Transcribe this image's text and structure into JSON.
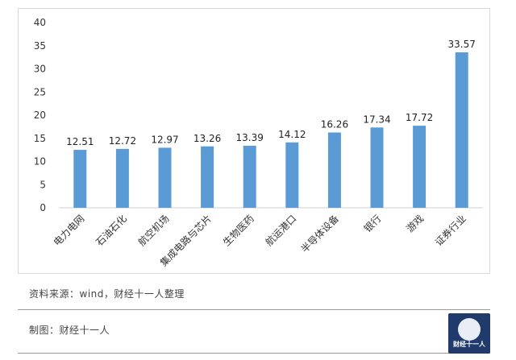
{
  "chart_data": {
    "type": "bar",
    "categories": [
      "电力电网",
      "石油石化",
      "航空机场",
      "集成电路与芯片",
      "生物医药",
      "航运港口",
      "半导体设备",
      "银行",
      "游戏",
      "证券行业"
    ],
    "values": [
      12.51,
      12.72,
      12.97,
      13.26,
      13.39,
      14.12,
      16.26,
      17.34,
      17.72,
      33.57
    ],
    "data_labels": [
      "12.51",
      "12.72",
      "12.97",
      "13.26",
      "13.39",
      "14.12",
      "16.26",
      "17.34",
      "17.72",
      "33.57"
    ],
    "ylim": [
      0,
      40
    ],
    "yticks": [
      0,
      5,
      10,
      15,
      20,
      25,
      30,
      35,
      40
    ],
    "bar_color": "#5b9bd5",
    "grid": false,
    "legend": "none",
    "title": "",
    "xlabel": "",
    "ylabel": ""
  },
  "footer": {
    "source": "资料来源：wind，财经十一人整理",
    "credit": "制图：财经十一人",
    "logo_text": "财经十一人"
  },
  "colors": {
    "logo_bg": "#1f3a6b",
    "divider": "#9a9a9a"
  }
}
